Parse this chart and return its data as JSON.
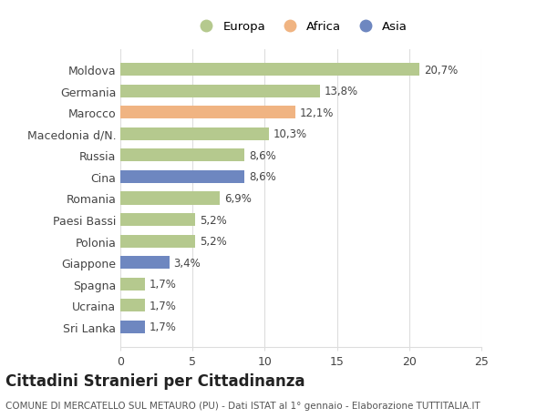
{
  "categories": [
    "Moldova",
    "Germania",
    "Marocco",
    "Macedonia d/N.",
    "Russia",
    "Cina",
    "Romania",
    "Paesi Bassi",
    "Polonia",
    "Giappone",
    "Spagna",
    "Ucraina",
    "Sri Lanka"
  ],
  "values": [
    20.7,
    13.8,
    12.1,
    10.3,
    8.6,
    8.6,
    6.9,
    5.2,
    5.2,
    3.4,
    1.7,
    1.7,
    1.7
  ],
  "labels": [
    "20,7%",
    "13,8%",
    "12,1%",
    "10,3%",
    "8,6%",
    "8,6%",
    "6,9%",
    "5,2%",
    "5,2%",
    "3,4%",
    "1,7%",
    "1,7%",
    "1,7%"
  ],
  "colors": [
    "#b5c98e",
    "#b5c98e",
    "#f0b482",
    "#b5c98e",
    "#b5c98e",
    "#6e87c0",
    "#b5c98e",
    "#b5c98e",
    "#b5c98e",
    "#6e87c0",
    "#b5c98e",
    "#b5c98e",
    "#6e87c0"
  ],
  "legend_labels": [
    "Europa",
    "Africa",
    "Asia"
  ],
  "legend_colors": [
    "#b5c98e",
    "#f0b482",
    "#6e87c0"
  ],
  "title": "Cittadini Stranieri per Cittadinanza",
  "subtitle": "COMUNE DI MERCATELLO SUL METAURO (PU) - Dati ISTAT al 1° gennaio - Elaborazione TUTTITALIA.IT",
  "xlim": [
    0,
    25
  ],
  "xticks": [
    0,
    5,
    10,
    15,
    20,
    25
  ],
  "background_color": "#ffffff",
  "grid_color": "#dddddd",
  "bar_height": 0.6,
  "label_fontsize": 8.5,
  "tick_fontsize": 9,
  "title_fontsize": 12,
  "subtitle_fontsize": 7.5
}
